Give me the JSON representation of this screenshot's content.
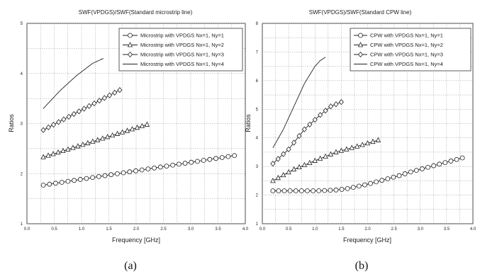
{
  "figure": {
    "captions": [
      "(a)",
      "(b)"
    ]
  },
  "chart_data": [
    {
      "type": "line",
      "title": "SWF(VPDGS)/SWF(Standard microstrip line)",
      "xlabel": "Frequency [GHz]",
      "ylabel": "Ratios",
      "xlim": [
        0.0,
        4.0
      ],
      "ylim": [
        1,
        5
      ],
      "xticks": [
        "0.0",
        "0.5",
        "1.0",
        "1.5",
        "2.0",
        "2.5",
        "3.0",
        "3.5",
        "4.0"
      ],
      "yticks": [
        "1",
        "2",
        "3",
        "4",
        "5"
      ],
      "grid": true,
      "legend": "top-right",
      "series": [
        {
          "name": "Microstrip with VPDGS Nx=1, Ny=1",
          "marker": "circle",
          "x": [
            0.3,
            3.8
          ],
          "y": [
            1.77,
            2.36
          ],
          "points": 32
        },
        {
          "name": "Microstrip with VPDGS Nx=1, Ny=2",
          "marker": "triangle",
          "x": [
            0.3,
            2.2
          ],
          "y": [
            2.33,
            2.98
          ],
          "points": 22
        },
        {
          "name": "Microstrip with VPDGS Nx=1, Ny=3",
          "marker": "diamond",
          "x": [
            0.3,
            1.7
          ],
          "y": [
            2.87,
            3.67
          ],
          "points": 16
        },
        {
          "name": "Microstrip with VPDGS Nx=1, Ny=4",
          "marker": "none",
          "x": [
            0.3,
            0.6,
            0.9,
            1.2,
            1.4
          ],
          "y": [
            3.3,
            3.65,
            3.95,
            4.2,
            4.3
          ],
          "points": 0
        }
      ]
    },
    {
      "type": "line",
      "title": "SWF(VPDGS)/SWF(Standard CPW line)",
      "xlabel": "Frequency [GHz]",
      "ylabel": "Ratios",
      "xlim": [
        0.0,
        4.0
      ],
      "ylim": [
        1,
        8
      ],
      "xticks": [
        "0.0",
        "0.5",
        "1.0",
        "1.5",
        "2.0",
        "2.5",
        "3.0",
        "3.5",
        "4.0"
      ],
      "yticks": [
        "1",
        "2",
        "3",
        "4",
        "5",
        "6",
        "7",
        "8"
      ],
      "grid": true,
      "legend": "top-right",
      "series": [
        {
          "name": "CPW with VPDGS Nx=1, Ny=1",
          "marker": "circle",
          "x": [
            0.2,
            0.4,
            0.6,
            0.8,
            1.0,
            1.2,
            1.4,
            1.6,
            1.8,
            2.0,
            2.2,
            2.4,
            2.6,
            2.8,
            3.0,
            3.2,
            3.4,
            3.6,
            3.8
          ],
          "y": [
            2.15,
            2.15,
            2.15,
            2.15,
            2.15,
            2.16,
            2.18,
            2.22,
            2.3,
            2.38,
            2.48,
            2.58,
            2.68,
            2.8,
            2.9,
            3.0,
            3.1,
            3.2,
            3.3
          ],
          "points": 34
        },
        {
          "name": "CPW with VPDGS Nx=1, Ny=2",
          "marker": "triangle",
          "x": [
            0.2,
            0.6,
            1.0,
            1.4,
            1.8,
            2.2
          ],
          "y": [
            2.5,
            2.9,
            3.2,
            3.5,
            3.7,
            3.92
          ],
          "points": 21
        },
        {
          "name": "CPW with VPDGS Nx=1, Ny=3",
          "marker": "diamond",
          "x": [
            0.2,
            0.5,
            0.8,
            1.1,
            1.3,
            1.5
          ],
          "y": [
            3.1,
            3.6,
            4.3,
            4.8,
            5.1,
            5.25
          ],
          "points": 14
        },
        {
          "name": "CPW with VPDGS Nx=1, Ny=4",
          "marker": "none",
          "x": [
            0.2,
            0.4,
            0.6,
            0.8,
            1.0,
            1.1,
            1.2
          ],
          "y": [
            3.65,
            4.3,
            5.1,
            5.9,
            6.5,
            6.7,
            6.82
          ],
          "points": 0
        }
      ]
    }
  ]
}
